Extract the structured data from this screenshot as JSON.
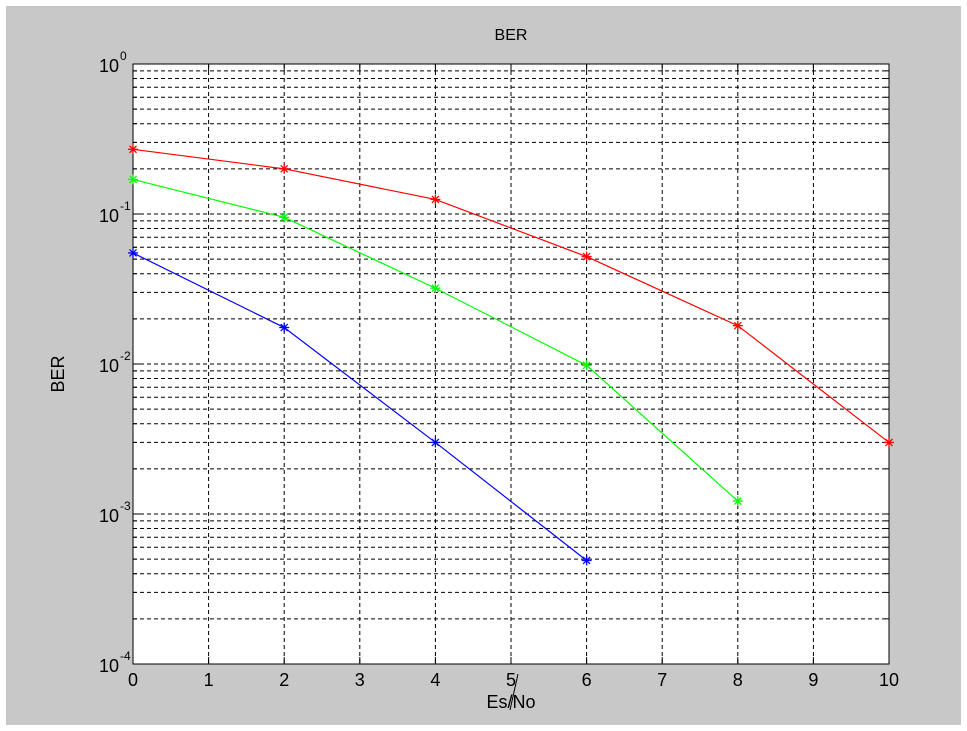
{
  "window": {
    "background": "#c8c8c8"
  },
  "chart_data": {
    "type": "line",
    "title": "BER",
    "xlabel": "Es/No",
    "ylabel": "BER",
    "xlim": [
      0,
      10
    ],
    "ylim": [
      0.0001,
      1
    ],
    "yscale": "log",
    "grid": "on",
    "legend": "none",
    "x_ticks": [
      0,
      1,
      2,
      3,
      4,
      5,
      6,
      7,
      8,
      9,
      10
    ],
    "y_ticks": [
      {
        "mantissa": "10",
        "exponent": "-4",
        "value": 0.0001
      },
      {
        "mantissa": "10",
        "exponent": "-3",
        "value": 0.001
      },
      {
        "mantissa": "10",
        "exponent": "-2",
        "value": 0.01
      },
      {
        "mantissa": "10",
        "exponent": "-1",
        "value": 0.1
      },
      {
        "mantissa": "10",
        "exponent": "0",
        "value": 1
      }
    ],
    "series": [
      {
        "color": "#0000ff",
        "marker": "asterisk",
        "x": [
          0,
          2,
          4,
          6
        ],
        "y": [
          0.055,
          0.0175,
          0.003,
          0.00049
        ]
      },
      {
        "color": "#00ff00",
        "marker": "asterisk",
        "x": [
          0,
          2,
          4,
          6,
          8
        ],
        "y": [
          0.17,
          0.095,
          0.032,
          0.0098,
          0.00122
        ]
      },
      {
        "color": "#ff0000",
        "marker": "asterisk",
        "x": [
          0,
          2,
          4,
          6,
          8,
          10
        ],
        "y": [
          0.27,
          0.2,
          0.125,
          0.052,
          0.018,
          0.003
        ]
      }
    ]
  }
}
